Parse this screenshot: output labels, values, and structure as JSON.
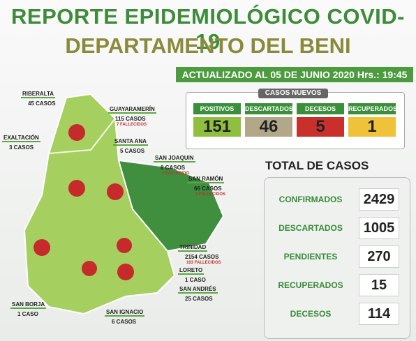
{
  "header": {
    "title": "REPORTE EPIDEMIOLÓGICO COVID-19",
    "subtitle": "DEPARTAMENTO DEL BENI",
    "updated": "ACTUALIZADO AL 05 DE JUNIO 2020 Hrs.: 19:45 pm."
  },
  "new_cases": {
    "title": "CASOS NUEVOS",
    "items": [
      {
        "label": "POSITIVOS",
        "value": 151
      },
      {
        "label": "DESCARTADOS",
        "value": 46
      },
      {
        "label": "DECESOS",
        "value": 5
      },
      {
        "label": "RECUPERADOS",
        "value": 1
      }
    ]
  },
  "totals": {
    "title": "TOTAL DE CASOS",
    "items": [
      {
        "label": "CONFIRMADOS",
        "value": 2429
      },
      {
        "label": "DESCARTADOS",
        "value": 1005
      },
      {
        "label": "PENDIENTES",
        "value": 270
      },
      {
        "label": "RECUPERADOS",
        "value": 15
      },
      {
        "label": "DECESOS",
        "value": 114
      }
    ]
  },
  "map": {
    "regions": [
      {
        "name": "RIBERALTA",
        "cases": "45 CASOS"
      },
      {
        "name": "GUAYARAMERÍN",
        "cases": "115 CASOS",
        "deaths": "7 FALLECIDOS"
      },
      {
        "name": "EXALTACIÓN",
        "cases": "3 CASOS"
      },
      {
        "name": "SANTA ANA",
        "cases": "5 CASOS"
      },
      {
        "name": "SAN JOAQUIN",
        "cases": "8 CASOS",
        "deaths": "1 FALLECIDO"
      },
      {
        "name": "SAN RAMÓN",
        "cases": "66 CASOS",
        "deaths": "3 FALLECIDOS"
      },
      {
        "name": "TRINIDAD",
        "cases": "2154 CASOS",
        "deaths": "103 FALLECIDOS"
      },
      {
        "name": "LORETO",
        "cases": "1 CASO"
      },
      {
        "name": "SAN ANDRÉS",
        "cases": "25 CASOS"
      },
      {
        "name": "SAN BORJA",
        "cases": "1 CASO"
      },
      {
        "name": "SAN IGNACIO",
        "cases": "6 CASOS"
      }
    ]
  }
}
